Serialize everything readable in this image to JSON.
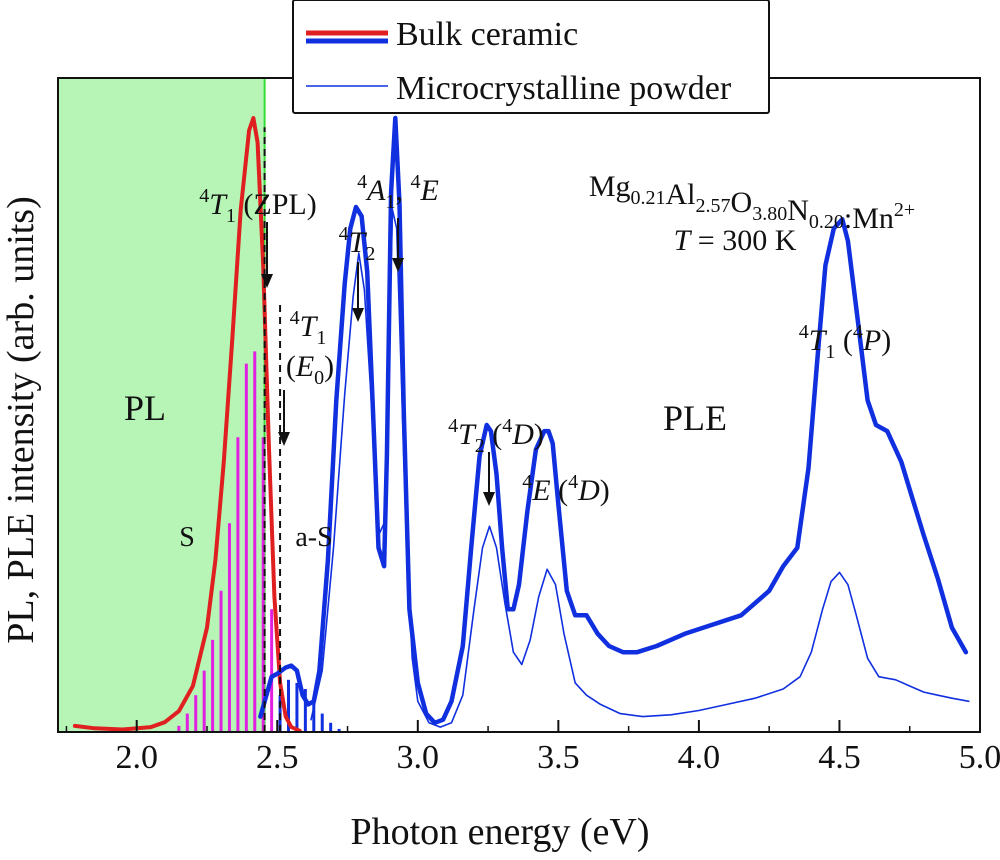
{
  "chart_data": {
    "type": "line",
    "xlabel": "Photon energy (eV)",
    "ylabel": "PL, PLE intensity (arb. units)",
    "xlim": [
      1.72,
      5.0
    ],
    "ylim": [
      0,
      1.0
    ],
    "x_ticks": [
      "2.0",
      "2.5",
      "3.0",
      "3.5",
      "4.0",
      "4.5",
      "5.0"
    ],
    "grid": false,
    "legend_position": "top-center",
    "legend": [
      {
        "label": "Bulk ceramic",
        "color": "#1030e0",
        "accent": "#e02020"
      },
      {
        "label": "Microcrystalline powder",
        "color": "#1030e0"
      }
    ],
    "shaded_region": {
      "x": [
        1.72,
        2.455
      ],
      "color": "#b6f5b6",
      "edge_color": "#33dd33"
    },
    "region_labels": {
      "pl": "PL",
      "ple": "PLE",
      "stokes": "S",
      "anti_stokes": "a-S"
    },
    "sample": {
      "formula_base": "Mg",
      "formula_parts": [
        {
          "t": "Mg",
          "sub": "0.21"
        },
        {
          "t": "Al",
          "sub": "2.57"
        },
        {
          "t": "O",
          "sub": "3.80"
        },
        {
          "t": "N",
          "sub": "0.20"
        }
      ],
      "dopant": ":Mn",
      "dopant_sup": "2+",
      "temperature_var": "T",
      "temperature_value": " = 300 K"
    },
    "annotations": [
      {
        "label_main": "T",
        "sup": "4",
        "sub": "1",
        "suffix": " (ZPL)",
        "x": 2.455,
        "y": 0.785
      },
      {
        "label_main": "T",
        "sup": "4",
        "sub": "2",
        "suffix": "",
        "x": 2.79,
        "y": 0.885
      },
      {
        "label_main": "A, E",
        "sup": "4",
        "sub": "1",
        "suffix": "",
        "x": 2.92,
        "y": 0.955
      },
      {
        "label_main": "T (E0)",
        "sup": "4",
        "sub": "1",
        "suffix": "",
        "x": 2.51,
        "y": 0.655
      },
      {
        "label_main": "T (D)",
        "sup": "4",
        "sub": "2",
        "suffix": "",
        "x": 3.26,
        "y": 0.505
      },
      {
        "label_main": "E (D)",
        "sup": "4",
        "sub": "",
        "suffix": "",
        "x": 3.47,
        "y": 0.49
      },
      {
        "label_main": "T (P)",
        "sup": "4",
        "sub": "1",
        "suffix": "",
        "x": 4.52,
        "y": 0.84
      }
    ],
    "series": [
      {
        "name": "PL (Bulk ceramic)",
        "color": "#e02020",
        "x": [
          1.78,
          1.85,
          1.95,
          2.05,
          2.1,
          2.15,
          2.2,
          2.25,
          2.28,
          2.31,
          2.34,
          2.37,
          2.4,
          2.415,
          2.43,
          2.45,
          2.47,
          2.49,
          2.51,
          2.53,
          2.55,
          2.58
        ],
        "y": [
          0.01,
          0.006,
          0.004,
          0.008,
          0.016,
          0.034,
          0.075,
          0.17,
          0.28,
          0.44,
          0.64,
          0.85,
          0.98,
          1.0,
          0.96,
          0.76,
          0.47,
          0.22,
          0.08,
          0.025,
          0.008,
          0.002
        ]
      },
      {
        "name": "PLE (Bulk ceramic)",
        "color": "#1030e0",
        "x": [
          2.44,
          2.48,
          2.5,
          2.53,
          2.55,
          2.57,
          2.59,
          2.61,
          2.63,
          2.65,
          2.68,
          2.71,
          2.74,
          2.76,
          2.78,
          2.8,
          2.82,
          2.84,
          2.86,
          2.88,
          2.89,
          2.905,
          2.92,
          2.935,
          2.95,
          2.97,
          3.0,
          3.03,
          3.06,
          3.09,
          3.12,
          3.16,
          3.19,
          3.22,
          3.245,
          3.26,
          3.28,
          3.3,
          3.32,
          3.34,
          3.36,
          3.39,
          3.42,
          3.45,
          3.465,
          3.48,
          3.5,
          3.53,
          3.56,
          3.6,
          3.64,
          3.68,
          3.73,
          3.78,
          3.85,
          3.95,
          4.05,
          4.15,
          4.25,
          4.3,
          4.35,
          4.39,
          4.42,
          4.45,
          4.48,
          4.51,
          4.53,
          4.56,
          4.6,
          4.63,
          4.67,
          4.72,
          4.76,
          4.8,
          4.85,
          4.9,
          4.95
        ],
        "y": [
          0.025,
          0.09,
          0.095,
          0.105,
          0.108,
          0.1,
          0.06,
          0.045,
          0.05,
          0.1,
          0.28,
          0.54,
          0.73,
          0.82,
          0.855,
          0.84,
          0.75,
          0.53,
          0.3,
          0.27,
          0.45,
          0.88,
          1.0,
          0.86,
          0.52,
          0.2,
          0.08,
          0.03,
          0.015,
          0.02,
          0.05,
          0.14,
          0.3,
          0.45,
          0.5,
          0.49,
          0.42,
          0.3,
          0.2,
          0.2,
          0.24,
          0.36,
          0.46,
          0.49,
          0.49,
          0.47,
          0.37,
          0.23,
          0.19,
          0.19,
          0.16,
          0.14,
          0.13,
          0.13,
          0.14,
          0.16,
          0.175,
          0.19,
          0.23,
          0.27,
          0.3,
          0.43,
          0.6,
          0.76,
          0.82,
          0.835,
          0.8,
          0.69,
          0.54,
          0.5,
          0.49,
          0.44,
          0.38,
          0.32,
          0.25,
          0.17,
          0.13
        ]
      },
      {
        "name": "PLE (Microcrystalline powder)",
        "color": "#1030e0",
        "x": [
          2.62,
          2.66,
          2.7,
          2.74,
          2.77,
          2.79,
          2.81,
          2.84,
          2.86,
          2.88,
          2.895,
          2.91,
          2.925,
          2.94,
          2.96,
          2.98,
          3.0,
          3.04,
          3.08,
          3.12,
          3.16,
          3.2,
          3.23,
          3.255,
          3.28,
          3.31,
          3.34,
          3.37,
          3.4,
          3.43,
          3.46,
          3.49,
          3.52,
          3.56,
          3.6,
          3.65,
          3.72,
          3.8,
          3.9,
          4.0,
          4.1,
          4.2,
          4.3,
          4.36,
          4.4,
          4.44,
          4.47,
          4.5,
          4.53,
          4.56,
          4.6,
          4.64,
          4.7,
          4.75,
          4.8,
          4.85,
          4.9,
          4.96
        ],
        "y": [
          0.02,
          0.1,
          0.3,
          0.55,
          0.71,
          0.78,
          0.72,
          0.5,
          0.32,
          0.34,
          0.6,
          0.85,
          0.82,
          0.6,
          0.3,
          0.12,
          0.05,
          0.015,
          0.008,
          0.015,
          0.06,
          0.2,
          0.3,
          0.335,
          0.3,
          0.21,
          0.13,
          0.11,
          0.15,
          0.22,
          0.265,
          0.24,
          0.16,
          0.08,
          0.06,
          0.045,
          0.03,
          0.025,
          0.028,
          0.035,
          0.045,
          0.055,
          0.07,
          0.09,
          0.13,
          0.2,
          0.245,
          0.26,
          0.24,
          0.19,
          0.12,
          0.09,
          0.085,
          0.075,
          0.065,
          0.06,
          0.055,
          0.05
        ]
      }
    ],
    "pl_bars": {
      "color": "#e020e0",
      "x": [
        2.15,
        2.18,
        2.21,
        2.24,
        2.27,
        2.3,
        2.33,
        2.36,
        2.39,
        2.42,
        2.45,
        2.48
      ],
      "y": [
        0.01,
        0.03,
        0.06,
        0.1,
        0.15,
        0.23,
        0.34,
        0.48,
        0.6,
        0.62,
        0.48,
        0.2
      ]
    },
    "ple_bars": {
      "color": "#1030e0",
      "x": [
        2.51,
        2.54,
        2.57,
        2.6,
        2.63,
        2.66,
        2.69,
        2.72
      ],
      "y": [
        0.06,
        0.085,
        0.08,
        0.07,
        0.05,
        0.03,
        0.015,
        0.005
      ]
    }
  }
}
